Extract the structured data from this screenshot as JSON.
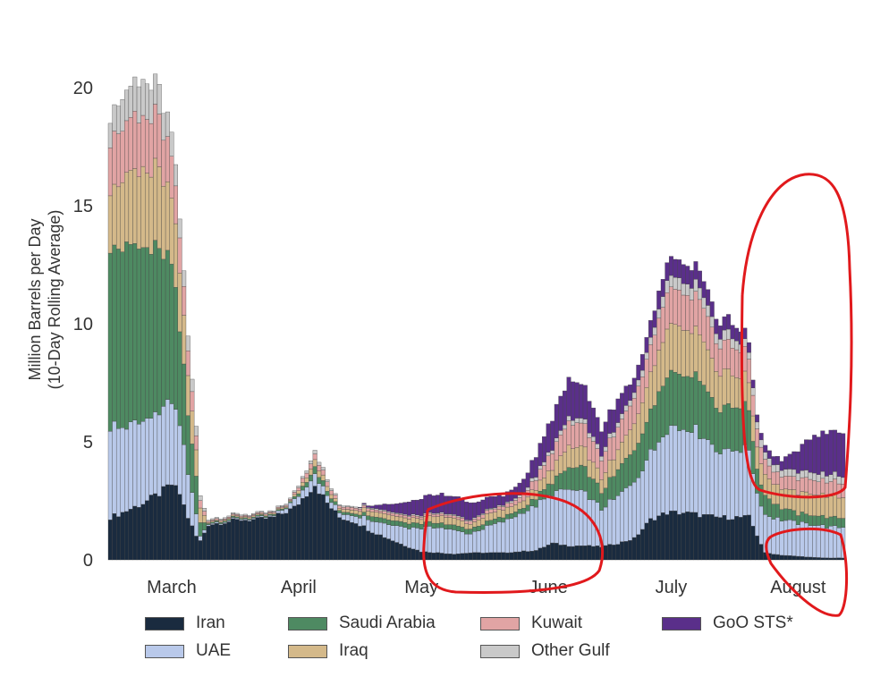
{
  "chart_data": {
    "type": "stacked_bar",
    "ylabel_line1": "Million Barrels per Day",
    "ylabel_line2": "(10-Day Rolling Average)",
    "ylim": [
      0,
      23
    ],
    "yticks": [
      0,
      5,
      10,
      15,
      20
    ],
    "month_ticks": [
      {
        "label": "March",
        "day": 15
      },
      {
        "label": "April",
        "day": 46
      },
      {
        "label": "May",
        "day": 76
      },
      {
        "label": "June",
        "day": 107
      },
      {
        "label": "July",
        "day": 137
      },
      {
        "label": "August",
        "day": 168
      }
    ],
    "days": 180,
    "grid": false,
    "legend_position": "bottom",
    "colors": {
      "Iran": "#1a2b3f",
      "UAE": "#b9c9ea",
      "Saudi Arabia": "#4e8a62",
      "Iraq": "#d4b98a",
      "Kuwait": "#e1a4a4",
      "Other Gulf": "#c9c9c9",
      "GoO STS*": "#5a2f8a"
    },
    "legend_order": [
      "Iran",
      "Saudi Arabia",
      "Kuwait",
      "GoO STS*",
      "UAE",
      "Iraq",
      "Other Gulf"
    ],
    "series_keyframes": {
      "Iran": [
        [
          0,
          1.8
        ],
        [
          3,
          2.0
        ],
        [
          8,
          2.4
        ],
        [
          12,
          2.8
        ],
        [
          15,
          3.2
        ],
        [
          17,
          2.8
        ],
        [
          19,
          1.8
        ],
        [
          21,
          1.0
        ],
        [
          22,
          0.8
        ],
        [
          24,
          1.5
        ],
        [
          28,
          1.6
        ],
        [
          32,
          1.7
        ],
        [
          36,
          1.7
        ],
        [
          40,
          1.8
        ],
        [
          45,
          2.2
        ],
        [
          48,
          2.8
        ],
        [
          50,
          3.2
        ],
        [
          53,
          2.4
        ],
        [
          56,
          1.8
        ],
        [
          60,
          1.6
        ],
        [
          64,
          1.2
        ],
        [
          68,
          0.9
        ],
        [
          72,
          0.6
        ],
        [
          76,
          0.35
        ],
        [
          80,
          0.3
        ],
        [
          84,
          0.25
        ],
        [
          88,
          0.3
        ],
        [
          92,
          0.3
        ],
        [
          96,
          0.3
        ],
        [
          100,
          0.35
        ],
        [
          104,
          0.4
        ],
        [
          108,
          0.7
        ],
        [
          112,
          0.6
        ],
        [
          116,
          0.6
        ],
        [
          120,
          0.55
        ],
        [
          124,
          0.7
        ],
        [
          128,
          0.9
        ],
        [
          132,
          1.7
        ],
        [
          136,
          2.0
        ],
        [
          140,
          2.0
        ],
        [
          144,
          1.9
        ],
        [
          148,
          1.8
        ],
        [
          152,
          1.8
        ],
        [
          156,
          1.8
        ],
        [
          160,
          0.3
        ],
        [
          164,
          0.2
        ],
        [
          168,
          0.15
        ],
        [
          172,
          0.1
        ],
        [
          175,
          0.08
        ],
        [
          179,
          0.08
        ]
      ],
      "UAE": [
        [
          0,
          3.9
        ],
        [
          3,
          3.6
        ],
        [
          8,
          3.5
        ],
        [
          12,
          3.4
        ],
        [
          15,
          3.5
        ],
        [
          17,
          3.0
        ],
        [
          19,
          1.8
        ],
        [
          21,
          0.9
        ],
        [
          22,
          0.2
        ],
        [
          24,
          0.05
        ],
        [
          40,
          0.05
        ],
        [
          45,
          0.3
        ],
        [
          48,
          0.4
        ],
        [
          50,
          0.5
        ],
        [
          53,
          0.3
        ],
        [
          56,
          0.2
        ],
        [
          60,
          0.3
        ],
        [
          64,
          0.5
        ],
        [
          68,
          0.6
        ],
        [
          72,
          0.8
        ],
        [
          76,
          1.0
        ],
        [
          80,
          1.1
        ],
        [
          84,
          1.0
        ],
        [
          88,
          0.8
        ],
        [
          92,
          1.1
        ],
        [
          96,
          1.3
        ],
        [
          100,
          1.6
        ],
        [
          104,
          1.9
        ],
        [
          108,
          2.1
        ],
        [
          112,
          2.4
        ],
        [
          116,
          2.2
        ],
        [
          120,
          1.6
        ],
        [
          124,
          2.0
        ],
        [
          128,
          2.4
        ],
        [
          132,
          2.8
        ],
        [
          136,
          3.6
        ],
        [
          140,
          3.6
        ],
        [
          144,
          3.5
        ],
        [
          148,
          2.8
        ],
        [
          152,
          2.9
        ],
        [
          156,
          2.8
        ],
        [
          158,
          1.8
        ],
        [
          160,
          1.6
        ],
        [
          164,
          1.5
        ],
        [
          168,
          1.4
        ],
        [
          172,
          1.4
        ],
        [
          176,
          1.3
        ],
        [
          179,
          1.3
        ]
      ],
      "Saudi Arabia": [
        [
          0,
          8.0
        ],
        [
          3,
          7.6
        ],
        [
          8,
          7.3
        ],
        [
          12,
          6.8
        ],
        [
          15,
          5.8
        ],
        [
          17,
          4.0
        ],
        [
          19,
          2.5
        ],
        [
          21,
          1.6
        ],
        [
          22,
          0.6
        ],
        [
          24,
          0.05
        ],
        [
          44,
          0.05
        ],
        [
          48,
          0.2
        ],
        [
          50,
          0.3
        ],
        [
          53,
          0.2
        ],
        [
          56,
          0.1
        ],
        [
          60,
          0.1
        ],
        [
          64,
          0.2
        ],
        [
          68,
          0.2
        ],
        [
          72,
          0.2
        ],
        [
          76,
          0.2
        ],
        [
          84,
          0.2
        ],
        [
          92,
          0.2
        ],
        [
          96,
          0.2
        ],
        [
          100,
          0.2
        ],
        [
          104,
          0.3
        ],
        [
          108,
          0.5
        ],
        [
          112,
          0.9
        ],
        [
          116,
          1.1
        ],
        [
          120,
          0.7
        ],
        [
          124,
          1.1
        ],
        [
          128,
          1.4
        ],
        [
          132,
          1.8
        ],
        [
          136,
          2.4
        ],
        [
          140,
          2.3
        ],
        [
          144,
          2.4
        ],
        [
          148,
          1.8
        ],
        [
          152,
          1.9
        ],
        [
          156,
          1.7
        ],
        [
          158,
          1.0
        ],
        [
          160,
          0.8
        ],
        [
          164,
          0.5
        ],
        [
          168,
          0.4
        ],
        [
          172,
          0.4
        ],
        [
          176,
          0.4
        ],
        [
          179,
          0.4
        ]
      ],
      "Iraq": [
        [
          0,
          2.5
        ],
        [
          3,
          2.8
        ],
        [
          8,
          3.3
        ],
        [
          12,
          3.4
        ],
        [
          15,
          2.9
        ],
        [
          17,
          2.5
        ],
        [
          19,
          1.8
        ],
        [
          21,
          1.1
        ],
        [
          22,
          0.6
        ],
        [
          24,
          0.05
        ],
        [
          44,
          0.05
        ],
        [
          48,
          0.2
        ],
        [
          50,
          0.3
        ],
        [
          53,
          0.2
        ],
        [
          56,
          0.1
        ],
        [
          60,
          0.15
        ],
        [
          64,
          0.2
        ],
        [
          68,
          0.2
        ],
        [
          72,
          0.2
        ],
        [
          76,
          0.2
        ],
        [
          80,
          0.3
        ],
        [
          84,
          0.3
        ],
        [
          88,
          0.2
        ],
        [
          92,
          0.3
        ],
        [
          96,
          0.3
        ],
        [
          100,
          0.3
        ],
        [
          104,
          0.4
        ],
        [
          108,
          0.6
        ],
        [
          112,
          0.9
        ],
        [
          116,
          0.8
        ],
        [
          120,
          0.6
        ],
        [
          124,
          0.8
        ],
        [
          128,
          1.1
        ],
        [
          132,
          1.5
        ],
        [
          136,
          2.0
        ],
        [
          140,
          1.9
        ],
        [
          144,
          1.9
        ],
        [
          148,
          1.5
        ],
        [
          152,
          1.4
        ],
        [
          156,
          1.2
        ],
        [
          158,
          0.9
        ],
        [
          160,
          0.9
        ],
        [
          164,
          0.8
        ],
        [
          168,
          0.9
        ],
        [
          172,
          0.9
        ],
        [
          176,
          0.9
        ],
        [
          179,
          0.9
        ]
      ],
      "Kuwait": [
        [
          0,
          2.1
        ],
        [
          3,
          2.3
        ],
        [
          8,
          2.3
        ],
        [
          12,
          2.2
        ],
        [
          15,
          1.8
        ],
        [
          17,
          1.5
        ],
        [
          19,
          1.0
        ],
        [
          21,
          0.6
        ],
        [
          22,
          0.3
        ],
        [
          24,
          0.05
        ],
        [
          44,
          0.05
        ],
        [
          48,
          0.2
        ],
        [
          50,
          0.25
        ],
        [
          53,
          0.2
        ],
        [
          56,
          0.1
        ],
        [
          60,
          0.1
        ],
        [
          64,
          0.1
        ],
        [
          68,
          0.1
        ],
        [
          72,
          0.1
        ],
        [
          76,
          0.1
        ],
        [
          84,
          0.1
        ],
        [
          92,
          0.15
        ],
        [
          96,
          0.15
        ],
        [
          100,
          0.2
        ],
        [
          104,
          0.4
        ],
        [
          108,
          0.7
        ],
        [
          112,
          1.0
        ],
        [
          116,
          1.0
        ],
        [
          120,
          0.8
        ],
        [
          124,
          1.0
        ],
        [
          128,
          1.1
        ],
        [
          132,
          1.2
        ],
        [
          136,
          1.5
        ],
        [
          140,
          1.5
        ],
        [
          144,
          1.5
        ],
        [
          148,
          1.2
        ],
        [
          152,
          1.2
        ],
        [
          156,
          1.0
        ],
        [
          158,
          0.8
        ],
        [
          160,
          0.6
        ],
        [
          164,
          0.5
        ],
        [
          168,
          0.6
        ],
        [
          172,
          0.6
        ],
        [
          176,
          0.6
        ],
        [
          179,
          0.6
        ]
      ],
      "Other Gulf": [
        [
          0,
          1.1
        ],
        [
          3,
          1.3
        ],
        [
          8,
          1.5
        ],
        [
          12,
          1.2
        ],
        [
          15,
          1.0
        ],
        [
          17,
          0.8
        ],
        [
          19,
          0.6
        ],
        [
          21,
          0.4
        ],
        [
          22,
          0.2
        ],
        [
          24,
          0.05
        ],
        [
          44,
          0.05
        ],
        [
          48,
          0.1
        ],
        [
          50,
          0.15
        ],
        [
          53,
          0.1
        ],
        [
          56,
          0.05
        ],
        [
          64,
          0.05
        ],
        [
          72,
          0.05
        ],
        [
          80,
          0.05
        ],
        [
          88,
          0.05
        ],
        [
          96,
          0.05
        ],
        [
          100,
          0.1
        ],
        [
          104,
          0.15
        ],
        [
          108,
          0.15
        ],
        [
          112,
          0.2
        ],
        [
          116,
          0.2
        ],
        [
          120,
          0.2
        ],
        [
          124,
          0.2
        ],
        [
          128,
          0.25
        ],
        [
          132,
          0.3
        ],
        [
          136,
          0.5
        ],
        [
          140,
          0.5
        ],
        [
          144,
          0.5
        ],
        [
          148,
          0.4
        ],
        [
          152,
          0.4
        ],
        [
          156,
          0.3
        ],
        [
          158,
          0.3
        ],
        [
          160,
          0.3
        ],
        [
          164,
          0.3
        ],
        [
          168,
          0.3
        ],
        [
          172,
          0.3
        ],
        [
          176,
          0.3
        ],
        [
          179,
          0.3
        ]
      ],
      "GoO STS*": [
        [
          0,
          0
        ],
        [
          44,
          0
        ],
        [
          60,
          0
        ],
        [
          64,
          0.1
        ],
        [
          68,
          0.3
        ],
        [
          72,
          0.5
        ],
        [
          76,
          0.7
        ],
        [
          80,
          0.8
        ],
        [
          84,
          0.8
        ],
        [
          88,
          0.7
        ],
        [
          92,
          0.5
        ],
        [
          96,
          0.4
        ],
        [
          100,
          0.5
        ],
        [
          104,
          0.8
        ],
        [
          108,
          1.3
        ],
        [
          112,
          1.6
        ],
        [
          116,
          1.5
        ],
        [
          120,
          1.0
        ],
        [
          124,
          1.0
        ],
        [
          128,
          0.6
        ],
        [
          132,
          0.7
        ],
        [
          136,
          0.8
        ],
        [
          140,
          0.8
        ],
        [
          144,
          0.7
        ],
        [
          148,
          0.6
        ],
        [
          152,
          0.6
        ],
        [
          156,
          0.4
        ],
        [
          158,
          0.3
        ],
        [
          160,
          0.3
        ],
        [
          164,
          0.4
        ],
        [
          168,
          0.9
        ],
        [
          172,
          1.6
        ],
        [
          176,
          1.8
        ],
        [
          179,
          1.8
        ]
      ]
    }
  }
}
